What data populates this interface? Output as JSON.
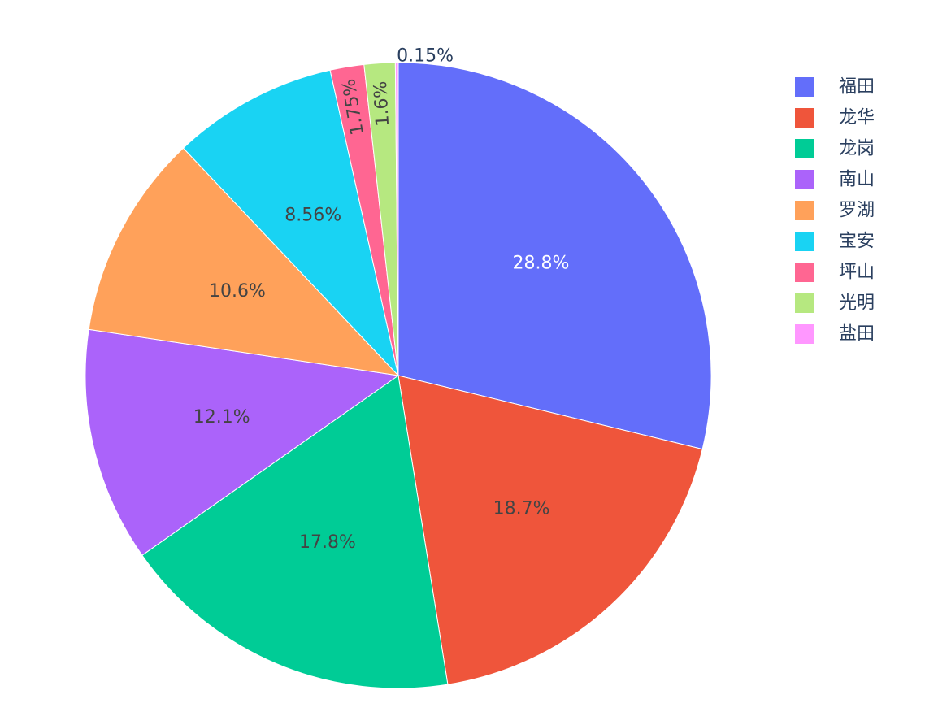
{
  "chart_data": {
    "type": "pie",
    "slices": [
      {
        "label": "福田",
        "value": 28.8,
        "text": "28.8%",
        "color": "#636efa",
        "text_color": "#ffffff"
      },
      {
        "label": "龙华",
        "value": 18.7,
        "text": "18.7%",
        "color": "#ef553b",
        "text_color": "#444444"
      },
      {
        "label": "龙岗",
        "value": 17.8,
        "text": "17.8%",
        "color": "#00cc96",
        "text_color": "#444444"
      },
      {
        "label": "南山",
        "value": 12.1,
        "text": "12.1%",
        "color": "#ab63fa",
        "text_color": "#444444"
      },
      {
        "label": "罗湖",
        "value": 10.6,
        "text": "10.6%",
        "color": "#ffa15a",
        "text_color": "#444444"
      },
      {
        "label": "宝安",
        "value": 8.56,
        "text": "8.56%",
        "color": "#19d3f3",
        "text_color": "#444444"
      },
      {
        "label": "坪山",
        "value": 1.75,
        "text": "1.75%",
        "color": "#ff6692",
        "text_color": "#444444"
      },
      {
        "label": "光明",
        "value": 1.6,
        "text": "1.6%",
        "color": "#b6e880",
        "text_color": "#444444"
      },
      {
        "label": "盐田",
        "value": 0.15,
        "text": "0.15%",
        "color": "#ff97ff",
        "text_color": "#2a3f5f"
      }
    ],
    "direction": "clockwise",
    "start_angle": "12 o'clock",
    "legend_position": "top-right"
  }
}
